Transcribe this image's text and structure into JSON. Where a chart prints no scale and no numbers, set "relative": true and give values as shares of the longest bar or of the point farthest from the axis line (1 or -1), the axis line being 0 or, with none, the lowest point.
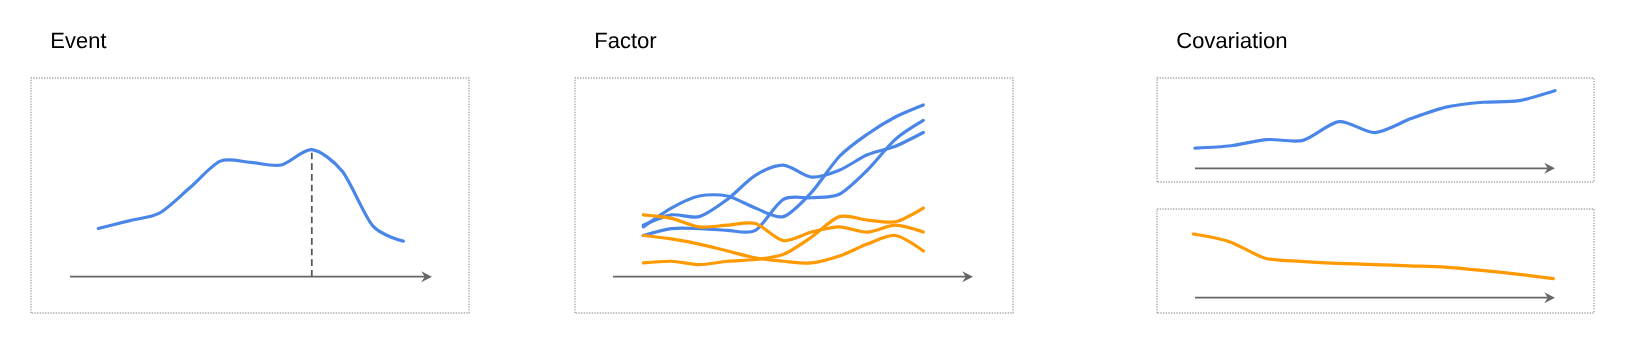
{
  "chart_data": [
    {
      "type": "line",
      "title": "Event",
      "relative": true,
      "categories": [
        null,
        null,
        null,
        null,
        null,
        null,
        null,
        null,
        null,
        null,
        null
      ],
      "series": [
        {
          "color": "#4a86e8",
          "values": [
            0.38,
            0.44,
            0.5,
            0.7,
            0.91,
            0.9,
            0.88,
            1,
            0.83,
            0.4,
            0.28
          ]
        }
      ]
    },
    {
      "type": "line",
      "title": "Factor",
      "relative": true,
      "categories": [
        null,
        null,
        null,
        null,
        null,
        null,
        null,
        null,
        null,
        null,
        null
      ],
      "series": [
        {
          "color": "#4a86e8",
          "values": [
            0.29,
            0.4,
            0.47,
            0.47,
            0.4,
            0.35,
            0.49,
            0.7,
            0.83,
            0.93,
            1
          ]
        },
        {
          "color": "#4a86e8",
          "values": [
            0.3,
            0.36,
            0.35,
            0.45,
            0.59,
            0.65,
            0.58,
            0.62,
            0.71,
            0.76,
            0.84
          ]
        },
        {
          "color": "#4a86e8",
          "values": [
            0.24,
            0.28,
            0.28,
            0.27,
            0.27,
            0.45,
            0.46,
            0.48,
            0.62,
            0.8,
            0.91
          ]
        },
        {
          "color": "#ff9900",
          "values": [
            0.36,
            0.34,
            0.29,
            0.3,
            0.31,
            0.21,
            0.26,
            0.29,
            0.26,
            0.3,
            0.26
          ]
        },
        {
          "color": "#ff9900",
          "values": [
            0.24,
            0.22,
            0.19,
            0.15,
            0.11,
            0.09,
            0.08,
            0.12,
            0.19,
            0.24,
            0.15
          ]
        },
        {
          "color": "#ff9900",
          "values": [
            0.08,
            0.09,
            0.07,
            0.09,
            0.1,
            0.13,
            0.23,
            0.35,
            0.33,
            0.32,
            0.4
          ]
        }
      ]
    },
    {
      "type": "line",
      "title": "Covariation",
      "relative": true,
      "categories": [
        null,
        null,
        null,
        null,
        null,
        null,
        null,
        null,
        null,
        null,
        null
      ],
      "series": [
        {
          "color": "#4a86e8",
          "values": [
            0.26,
            0.29,
            0.37,
            0.36,
            0.6,
            0.46,
            0.64,
            0.79,
            0.85,
            0.87,
            1
          ]
        }
      ]
    },
    {
      "type": "line",
      "relative": true,
      "categories": [
        null,
        null,
        null,
        null,
        null,
        null,
        null,
        null,
        null,
        null,
        null
      ],
      "series": [
        {
          "color": "#ff9900",
          "values": [
            1,
            0.88,
            0.62,
            0.57,
            0.54,
            0.52,
            0.5,
            0.48,
            0.43,
            0.37,
            0.3
          ]
        }
      ]
    }
  ]
}
